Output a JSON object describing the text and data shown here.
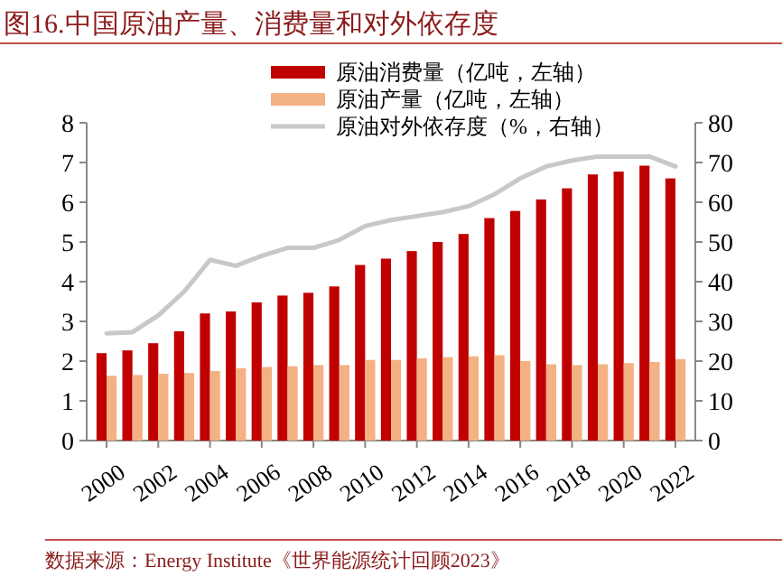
{
  "chart_data": {
    "type": "bar",
    "title": "图16.中国原油产量、消费量和对外依存度",
    "categories": [
      "2000",
      null,
      "2002",
      null,
      "2004",
      null,
      "2006",
      null,
      "2008",
      null,
      "2010",
      null,
      "2012",
      null,
      "2014",
      null,
      "2016",
      null,
      "2018",
      null,
      "2020",
      null,
      "2022"
    ],
    "series": [
      {
        "name": "原油消费量（亿吨，左轴）",
        "color": "#c00000",
        "values": [
          2.2,
          2.27,
          2.45,
          2.75,
          3.2,
          3.25,
          3.48,
          3.65,
          3.72,
          3.88,
          4.42,
          4.58,
          4.77,
          5.0,
          5.2,
          5.6,
          5.78,
          6.07,
          6.35,
          6.7,
          6.77,
          6.92,
          6.6
        ]
      },
      {
        "name": "原油产量（亿吨，左轴）",
        "color": "#f4b183",
        "values": [
          1.63,
          1.65,
          1.68,
          1.7,
          1.75,
          1.82,
          1.85,
          1.87,
          1.9,
          1.9,
          2.03,
          2.03,
          2.07,
          2.1,
          2.12,
          2.15,
          2.0,
          1.92,
          1.9,
          1.92,
          1.95,
          1.98,
          2.05
        ]
      },
      {
        "name": "原油对外依存度（%，右轴）",
        "type": "line",
        "axis": "y2",
        "color": "#c8c8c8",
        "values": [
          27,
          27.3,
          31.5,
          37.5,
          45.5,
          44,
          46.5,
          48.5,
          48.5,
          50.5,
          54,
          55.5,
          56.5,
          57.5,
          59,
          62,
          66,
          69,
          70.5,
          71.5,
          71.5,
          71.5,
          69
        ]
      }
    ],
    "ylim": [
      0,
      8
    ],
    "yticks": [
      0,
      1,
      2,
      3,
      4,
      5,
      6,
      7,
      8
    ],
    "y2lim": [
      0,
      80
    ],
    "y2ticks": [
      0,
      10,
      20,
      30,
      40,
      50,
      60,
      70,
      80
    ],
    "grid": false,
    "legend": "top",
    "annotations": [
      "数据来源：Energy Institute《世界能源统计回顾2023》"
    ]
  }
}
